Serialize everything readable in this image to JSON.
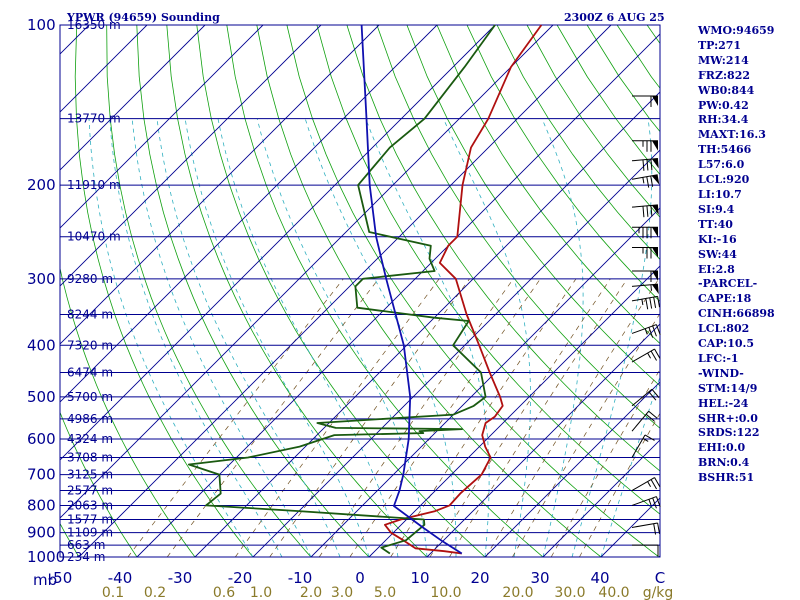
{
  "header": {
    "title": "YPWR (94659) Sounding",
    "time": "2300Z  6 AUG 25"
  },
  "side_panel": [
    "WMO:94659",
    "TP:271",
    "MW:214",
    "FRZ:822",
    "WB0:844",
    "PW:0.42",
    "RH:34.4",
    "MAXT:16.3",
    "TH:5466",
    "L57:6.0",
    "LCL:920",
    "LI:10.7",
    "SI:9.4",
    "TT:40",
    "KI:-16",
    "SW:44",
    "EI:2.8",
    "-PARCEL-",
    "CAPE:18",
    "CINH:66898",
    "LCL:802",
    "CAP:10.5",
    "LFC:-1",
    "-WIND-",
    "STM:14/9",
    "HEL:-24",
    "SHR+:0.0",
    "SRDS:122",
    "EHI:0.0",
    "BRN:0.4",
    "BSHR:51"
  ],
  "chart_data": {
    "type": "line",
    "title": "YPWR (94659) Sounding",
    "diagram": "skew-T log-p",
    "pressure_axis": {
      "unit": "mb",
      "scale": "log",
      "range": [
        1000,
        100
      ],
      "ticks": [
        100,
        200,
        300,
        400,
        500,
        600,
        700,
        800,
        900,
        1000
      ]
    },
    "temperature_axis": {
      "range": [
        -50,
        50
      ],
      "ticks": [
        -50,
        -40,
        -30,
        -20,
        -10,
        0,
        10,
        20,
        30,
        40
      ],
      "tick_labels": [
        "-50",
        "-40",
        "-30",
        "-20",
        "-10",
        "0",
        "10",
        "20",
        "30",
        "40"
      ],
      "unit_label": "C"
    },
    "height_levels": [
      {
        "p": 100,
        "label": "16350 m"
      },
      {
        "p": 150,
        "label": "13770 m"
      },
      {
        "p": 200,
        "label": "11910 m"
      },
      {
        "p": 250,
        "label": "10470 m"
      },
      {
        "p": 300,
        "label": "9280 m"
      },
      {
        "p": 350,
        "label": "8244 m"
      },
      {
        "p": 400,
        "label": "7320 m"
      },
      {
        "p": 450,
        "label": "6474 m"
      },
      {
        "p": 500,
        "label": "5700 m"
      },
      {
        "p": 550,
        "label": "4986 m"
      },
      {
        "p": 600,
        "label": "4324 m"
      },
      {
        "p": 650,
        "label": "3708 m"
      },
      {
        "p": 700,
        "label": "3125 m"
      },
      {
        "p": 750,
        "label": "2577 m"
      },
      {
        "p": 800,
        "label": "2063 m"
      },
      {
        "p": 850,
        "label": "1577 m"
      },
      {
        "p": 900,
        "label": "1109 m"
      },
      {
        "p": 950,
        "label": "663 m"
      },
      {
        "p": 1000,
        "label": "234 m"
      }
    ],
    "mixing_ratio_labels": [
      "0.1",
      "0.2",
      "0.6",
      "1.0",
      "2.0",
      "3.0",
      "5.0",
      "10.0",
      "20.0",
      "30.0",
      "40.0"
    ],
    "mixing_ratio_unit": "g/kg",
    "series": [
      {
        "role": "temperature",
        "color": "#b01010",
        "points": [
          [
            985,
            15.4
          ],
          [
            975,
            12.0
          ],
          [
            963,
            6.5
          ],
          [
            930,
            3.0
          ],
          [
            900,
            -0.4
          ],
          [
            870,
            -2.8
          ],
          [
            850,
            -1.0
          ],
          [
            820,
            3.5
          ],
          [
            800,
            5.0
          ],
          [
            760,
            4.8
          ],
          [
            700,
            5.2
          ],
          [
            650,
            3.8
          ],
          [
            620,
            1.0
          ],
          [
            590,
            -1.5
          ],
          [
            560,
            -3.0
          ],
          [
            545,
            -2.5
          ],
          [
            520,
            -3.0
          ],
          [
            500,
            -5.0
          ],
          [
            450,
            -11.0
          ],
          [
            400,
            -17.5
          ],
          [
            350,
            -25.0
          ],
          [
            300,
            -33.0
          ],
          [
            280,
            -38.5
          ],
          [
            260,
            -40.0
          ],
          [
            250,
            -40.0
          ],
          [
            200,
            -48.0
          ],
          [
            170,
            -53.0
          ],
          [
            150,
            -55.0
          ],
          [
            120,
            -60.0
          ],
          [
            100,
            -62.0
          ]
        ]
      },
      {
        "role": "dewpoint",
        "color": "#1a5a10",
        "points": [
          [
            985,
            3.0
          ],
          [
            960,
            0.5
          ],
          [
            930,
            3.5
          ],
          [
            870,
            4.0
          ],
          [
            850,
            3.0
          ],
          [
            820,
            -20.0
          ],
          [
            800,
            -37.0
          ],
          [
            760,
            -36.5
          ],
          [
            700,
            -40.0
          ],
          [
            670,
            -47.0
          ],
          [
            650,
            -38.0
          ],
          [
            620,
            -31.0
          ],
          [
            590,
            -27.0
          ],
          [
            585,
            -12.0
          ],
          [
            580,
            -13.0
          ],
          [
            575,
            -6.0
          ],
          [
            572,
            -28.0
          ],
          [
            560,
            -32.0
          ],
          [
            540,
            -10.0
          ],
          [
            520,
            -8.0
          ],
          [
            500,
            -7.5
          ],
          [
            450,
            -12.5
          ],
          [
            400,
            -22.0
          ],
          [
            360,
            -23.5
          ],
          [
            355,
            -30.0
          ],
          [
            340,
            -45.0
          ],
          [
            310,
            -49.0
          ],
          [
            300,
            -49.0
          ],
          [
            290,
            -38.0
          ],
          [
            275,
            -41.0
          ],
          [
            260,
            -43.0
          ],
          [
            245,
            -56.0
          ],
          [
            200,
            -66.0
          ],
          [
            170,
            -67.0
          ],
          [
            150,
            -66.0
          ],
          [
            120,
            -68.0
          ],
          [
            100,
            -70.0
          ]
        ]
      },
      {
        "role": "parcel",
        "color": "#1010b0",
        "points": [
          [
            985,
            15.4
          ],
          [
            930,
            9.5
          ],
          [
            880,
            4.2
          ],
          [
            802,
            -4.5
          ],
          [
            750,
            -6.2
          ],
          [
            700,
            -8.3
          ],
          [
            600,
            -13.5
          ],
          [
            500,
            -20.5
          ],
          [
            400,
            -30.5
          ],
          [
            300,
            -45.0
          ],
          [
            250,
            -54.0
          ],
          [
            200,
            -64.0
          ],
          [
            150,
            -76.0
          ],
          [
            100,
            -93.0
          ]
        ]
      }
    ],
    "wind_barbs": [
      {
        "p": 136,
        "spd": 60,
        "dir": 270
      },
      {
        "p": 165,
        "spd": 75,
        "dir": 270
      },
      {
        "p": 180,
        "spd": 80,
        "dir": 275
      },
      {
        "p": 195,
        "spd": 75,
        "dir": 280
      },
      {
        "p": 220,
        "spd": 80,
        "dir": 275
      },
      {
        "p": 240,
        "spd": 85,
        "dir": 270
      },
      {
        "p": 262,
        "spd": 75,
        "dir": 270
      },
      {
        "p": 290,
        "spd": 60,
        "dir": 270
      },
      {
        "p": 310,
        "spd": 55,
        "dir": 275
      },
      {
        "p": 330,
        "spd": 45,
        "dir": 280
      },
      {
        "p": 380,
        "spd": 35,
        "dir": 290
      },
      {
        "p": 430,
        "spd": 25,
        "dir": 300
      },
      {
        "p": 520,
        "spd": 20,
        "dir": 310
      },
      {
        "p": 580,
        "spd": 20,
        "dir": 320
      },
      {
        "p": 650,
        "spd": 15,
        "dir": 330
      },
      {
        "p": 750,
        "spd": 25,
        "dir": 300
      },
      {
        "p": 800,
        "spd": 25,
        "dir": 290
      },
      {
        "p": 880,
        "spd": 20,
        "dir": 280
      },
      {
        "p": 950,
        "spd": 10,
        "dir": 270
      }
    ]
  },
  "colors": {
    "frame": "#000090",
    "isobar": "#000090",
    "isotherm": "#000090",
    "dry_adiabat": "#10a010",
    "moist_adiabat": "#30b0c0",
    "mixing_ratio": "#705020",
    "label_mixing": "#8a7a2a"
  }
}
